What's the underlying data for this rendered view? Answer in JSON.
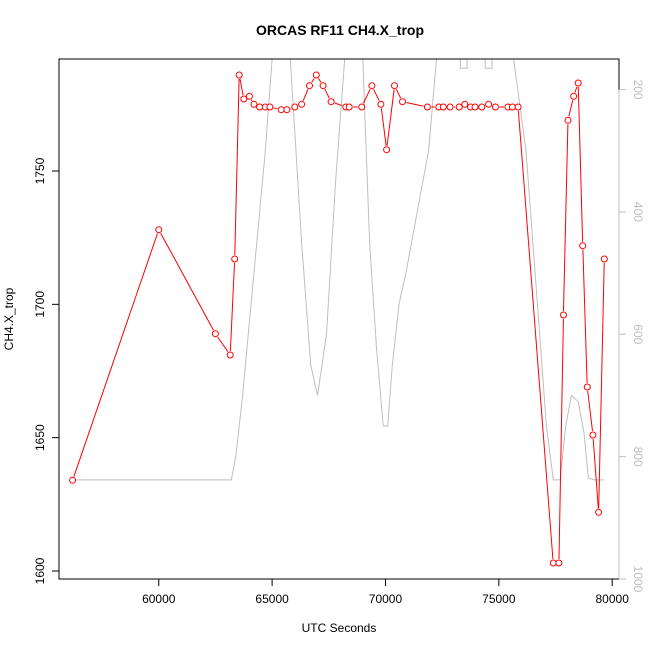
{
  "chart_data": {
    "type": "line",
    "title": "ORCAS RF11 CH4.X_trop",
    "xlabel": "UTC Seconds",
    "ylabel": "CH4.X_trop",
    "xlim": [
      55600,
      80300
    ],
    "ylim": [
      1597,
      1792
    ],
    "y2lim": [
      1000,
      150
    ],
    "x_ticks": [
      60000,
      65000,
      70000,
      75000,
      80000
    ],
    "x_tick_labels": [
      "60000",
      "65000",
      "70000",
      "75000",
      "80000"
    ],
    "y_ticks": [
      1600,
      1650,
      1700,
      1750
    ],
    "y_tick_labels": [
      "1600",
      "1650",
      "1700",
      "1750"
    ],
    "y2_ticks": [
      200,
      400,
      600,
      800,
      1000
    ],
    "y2_tick_labels": [
      "200",
      "400",
      "600",
      "800",
      "1000"
    ],
    "grid": false,
    "colors": {
      "primary": "#ff0000",
      "secondary": "#bebebe",
      "axes": "#000000"
    },
    "series": [
      {
        "axis": "left",
        "style": "line+open-circles",
        "points": [
          [
            56200,
            1634
          ],
          [
            60000,
            1728
          ],
          [
            62500,
            1689
          ],
          [
            63150,
            1681
          ],
          [
            63350,
            1717
          ],
          [
            63550,
            1786
          ],
          [
            63750,
            1777
          ],
          [
            64000,
            1778
          ],
          [
            64200,
            1775
          ],
          [
            64450,
            1774
          ],
          [
            64700,
            1774
          ],
          [
            64900,
            1774
          ],
          [
            65400,
            1773
          ],
          [
            65650,
            1773
          ],
          [
            66000,
            1774
          ],
          [
            66300,
            1775
          ],
          [
            66650,
            1782
          ],
          [
            66950,
            1786
          ],
          [
            67250,
            1782
          ],
          [
            67600,
            1776
          ],
          [
            68250,
            1774
          ],
          [
            68400,
            1774
          ],
          [
            68950,
            1774
          ],
          [
            69400,
            1782
          ],
          [
            69800,
            1775
          ],
          [
            70050,
            1758
          ],
          [
            70400,
            1782
          ],
          [
            70750,
            1776
          ],
          [
            71850,
            1774
          ],
          [
            72350,
            1774
          ],
          [
            72550,
            1774
          ],
          [
            72850,
            1774
          ],
          [
            73250,
            1774
          ],
          [
            73500,
            1775
          ],
          [
            73750,
            1774
          ],
          [
            73950,
            1774
          ],
          [
            74250,
            1774
          ],
          [
            74550,
            1775
          ],
          [
            74850,
            1774
          ],
          [
            75400,
            1774
          ],
          [
            75600,
            1774
          ],
          [
            75850,
            1774
          ],
          [
            77400,
            1603
          ],
          [
            77650,
            1603
          ],
          [
            77850,
            1696
          ],
          [
            78050,
            1769
          ],
          [
            78300,
            1778
          ],
          [
            78500,
            1783
          ],
          [
            78700,
            1722
          ],
          [
            78900,
            1669
          ],
          [
            79150,
            1651
          ],
          [
            79400,
            1622
          ],
          [
            79650,
            1717
          ]
        ]
      },
      {
        "axis": "right",
        "style": "line",
        "points": [
          [
            56200,
            838
          ],
          [
            63200,
            838
          ],
          [
            63400,
            800
          ],
          [
            63700,
            700
          ],
          [
            64000,
            580
          ],
          [
            64400,
            420
          ],
          [
            64700,
            300
          ],
          [
            65000,
            150
          ],
          [
            65800,
            150
          ],
          [
            66300,
            450
          ],
          [
            66700,
            650
          ],
          [
            67000,
            700
          ],
          [
            67400,
            600
          ],
          [
            67800,
            350
          ],
          [
            68200,
            150
          ],
          [
            69000,
            150
          ],
          [
            69300,
            450
          ],
          [
            69600,
            620
          ],
          [
            69900,
            750
          ],
          [
            70100,
            750
          ],
          [
            70300,
            650
          ],
          [
            70600,
            550
          ],
          [
            70900,
            500
          ],
          [
            71500,
            380
          ],
          [
            71900,
            300
          ],
          [
            72250,
            150
          ],
          [
            73300,
            150
          ],
          [
            73300,
            165
          ],
          [
            73600,
            165
          ],
          [
            73600,
            150
          ],
          [
            74400,
            150
          ],
          [
            74400,
            165
          ],
          [
            74700,
            165
          ],
          [
            74700,
            150
          ],
          [
            75650,
            150
          ],
          [
            76200,
            300
          ],
          [
            76700,
            550
          ],
          [
            77100,
            750
          ],
          [
            77400,
            838
          ],
          [
            77700,
            838
          ],
          [
            77950,
            750
          ],
          [
            78200,
            700
          ],
          [
            78500,
            710
          ],
          [
            78750,
            760
          ],
          [
            78950,
            835
          ],
          [
            79200,
            838
          ],
          [
            79650,
            838
          ]
        ]
      }
    ]
  }
}
